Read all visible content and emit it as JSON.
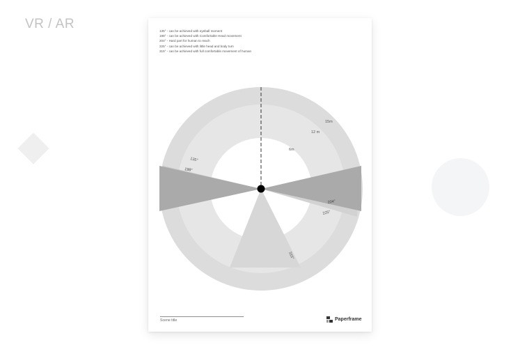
{
  "page": {
    "title": "VR / AR"
  },
  "sheet": {
    "notes": [
      "135° - can be achieved with eyeball moment",
      "198° - can be achieved with Comfortable Head movement",
      "204° - Hard part for human to reach",
      "225° - can be achieved with little head and body  turn",
      "315° - can be achieved with full comfortable movement of human"
    ],
    "distance_labels": [
      "15m",
      "12 m",
      "6m"
    ],
    "angle_labels": [
      "135°",
      "198°",
      "204°",
      "225°",
      "315°"
    ],
    "scene_title": "Scene title",
    "brand_name": "Paperframe"
  },
  "colors": {
    "outer_ring": "#dcdcdc",
    "middle_ring": "#e6e6e6",
    "inner_ring": "#f0f0f0",
    "center_area": "#ffffff",
    "side_wedge": "#aaaaaa",
    "band_225": "#d2d2d2",
    "band_135": "#c8c8c8",
    "bottom_wedge": "#d7d7d7",
    "viewer_dot": "#000000"
  }
}
